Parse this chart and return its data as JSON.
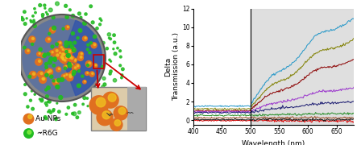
{
  "figsize": [
    4.48,
    1.8
  ],
  "dpi": 100,
  "xlabel": "Wavelength (nm)",
  "ylabel": "Delta\nTransmission (a.u.)",
  "xlim": [
    400,
    680
  ],
  "ylim": [
    -0.5,
    12
  ],
  "yticks": [
    0,
    2,
    4,
    6,
    8,
    10,
    12
  ],
  "xticks": [
    400,
    450,
    500,
    550,
    600,
    650
  ],
  "vline_x": 500,
  "curve_params": [
    {
      "color": "#2196c8",
      "peak": 11.0,
      "flat": 1.5,
      "seed": 11
    },
    {
      "color": "#808000",
      "peak": 8.7,
      "flat": 1.2,
      "seed": 22
    },
    {
      "color": "#8b0000",
      "peak": 6.5,
      "flat": 1.0,
      "seed": 33
    },
    {
      "color": "#9932cc",
      "peak": 3.5,
      "flat": 0.9,
      "seed": 44
    },
    {
      "color": "#191970",
      "peak": 2.0,
      "flat": 0.8,
      "seed": 55
    },
    {
      "color": "#228b22",
      "peak": 0.7,
      "flat": 0.5,
      "seed": 66
    },
    {
      "color": "#a0522d",
      "peak": 0.25,
      "flat": 0.25,
      "seed": 77
    },
    {
      "color": "#dd0000",
      "peak": -0.1,
      "flat": -0.05,
      "seed": 88
    },
    {
      "color": "#111111",
      "peak": 0.05,
      "flat": 0.05,
      "seed": 99
    }
  ],
  "au_np_orange": "#e07020",
  "au_np_yellow": "#f0c020",
  "r6g_green": "#22bb22",
  "r6g_light": "#88ee44",
  "shell_gray": "#888888",
  "shell_dark": "#555555",
  "arrow_color": "#cc0000",
  "label_fontsize": 6.5,
  "tick_fontsize": 5.5
}
